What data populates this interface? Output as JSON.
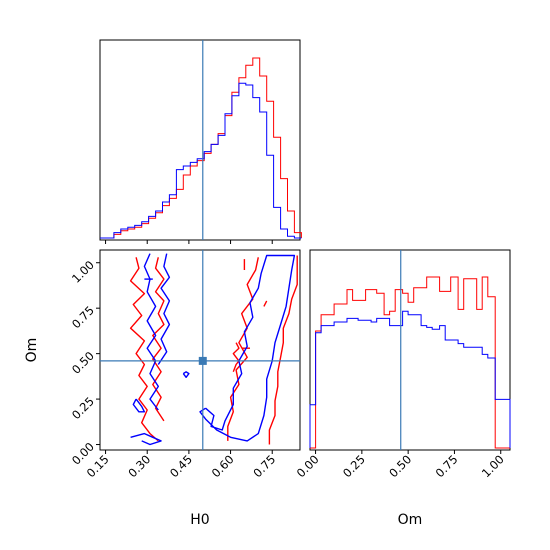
{
  "colors": {
    "red": "#ff0000",
    "blue": "#0000ff",
    "truth": "#3a7ab5",
    "frame": "#000000"
  },
  "chart_data": [
    {
      "type": "histogram",
      "panel": "H0 marginal",
      "x_range": [
        0.13,
        0.85
      ],
      "bin_edges": [
        0.13,
        0.155,
        0.18,
        0.205,
        0.23,
        0.255,
        0.28,
        0.305,
        0.33,
        0.355,
        0.38,
        0.405,
        0.43,
        0.455,
        0.48,
        0.505,
        0.53,
        0.555,
        0.58,
        0.605,
        0.63,
        0.655,
        0.68,
        0.705,
        0.73,
        0.755,
        0.78,
        0.805,
        0.83,
        0.855
      ],
      "series": [
        {
          "color": "red",
          "counts": [
            0,
            0,
            0.02,
            0.04,
            0.05,
            0.06,
            0.08,
            0.11,
            0.14,
            0.18,
            0.22,
            0.27,
            0.35,
            0.4,
            0.43,
            0.47,
            0.52,
            0.58,
            0.68,
            0.81,
            0.89,
            0.96,
            1.0,
            0.9,
            0.76,
            0.56,
            0.33,
            0.15,
            0.03
          ]
        },
        {
          "color": "blue",
          "counts": [
            0,
            0,
            0.03,
            0.05,
            0.06,
            0.07,
            0.09,
            0.12,
            0.15,
            0.2,
            0.24,
            0.38,
            0.4,
            0.42,
            0.44,
            0.48,
            0.52,
            0.57,
            0.69,
            0.79,
            0.86,
            0.85,
            0.78,
            0.7,
            0.46,
            0.17,
            0.05,
            0.01,
            0
          ]
        }
      ],
      "truth_x": 0.5
    },
    {
      "type": "contour",
      "panel": "H0 vs Om",
      "x_range": [
        0.13,
        0.85
      ],
      "y_range": [
        -0.03,
        1.07
      ],
      "x_ticks": [
        "0.15",
        "0.30",
        "0.45",
        "0.60",
        "0.75"
      ],
      "y_ticks": [
        "0.00",
        "0.25",
        "0.50",
        "0.75",
        "1.00"
      ],
      "xlabel": "H0",
      "ylabel": "Om",
      "truth_point": [
        0.5,
        0.46
      ],
      "red_contours": [
        [
          [
            0.26,
            1.03
          ],
          [
            0.27,
            0.97
          ],
          [
            0.24,
            0.9
          ],
          [
            0.29,
            0.83
          ],
          [
            0.25,
            0.77
          ],
          [
            0.28,
            0.71
          ],
          [
            0.24,
            0.64
          ],
          [
            0.29,
            0.57
          ],
          [
            0.26,
            0.5
          ],
          [
            0.29,
            0.44
          ],
          [
            0.27,
            0.38
          ],
          [
            0.3,
            0.32
          ],
          [
            0.27,
            0.25
          ],
          [
            0.3,
            0.19
          ],
          [
            0.28,
            0.12
          ],
          [
            0.31,
            0.06
          ],
          [
            0.34,
            0.02
          ]
        ],
        [
          [
            0.34,
            1.03
          ],
          [
            0.33,
            0.97
          ],
          [
            0.36,
            0.91
          ],
          [
            0.33,
            0.84
          ],
          [
            0.36,
            0.79
          ],
          [
            0.34,
            0.72
          ],
          [
            0.36,
            0.66
          ],
          [
            0.32,
            0.6
          ],
          [
            0.35,
            0.53
          ],
          [
            0.32,
            0.47
          ],
          [
            0.35,
            0.4
          ],
          [
            0.32,
            0.33
          ],
          [
            0.35,
            0.26
          ],
          [
            0.33,
            0.2
          ],
          [
            0.36,
            0.13
          ]
        ],
        [
          [
            0.59,
            0.02
          ],
          [
            0.59,
            0.1
          ],
          [
            0.61,
            0.18
          ],
          [
            0.6,
            0.26
          ],
          [
            0.63,
            0.33
          ],
          [
            0.62,
            0.41
          ],
          [
            0.66,
            0.48
          ],
          [
            0.63,
            0.56
          ],
          [
            0.66,
            0.64
          ],
          [
            0.64,
            0.72
          ],
          [
            0.68,
            0.8
          ],
          [
            0.66,
            0.88
          ],
          [
            0.69,
            0.96
          ],
          [
            0.7,
            1.03
          ]
        ],
        [
          [
            0.74,
            0.0
          ],
          [
            0.74,
            0.08
          ],
          [
            0.76,
            0.16
          ],
          [
            0.76,
            0.24
          ],
          [
            0.77,
            0.32
          ],
          [
            0.77,
            0.4
          ],
          [
            0.78,
            0.48
          ],
          [
            0.79,
            0.56
          ],
          [
            0.79,
            0.64
          ],
          [
            0.81,
            0.72
          ],
          [
            0.82,
            0.8
          ],
          [
            0.84,
            0.88
          ],
          [
            0.84,
            0.96
          ],
          [
            0.84,
            1.04
          ]
        ],
        [
          [
            0.61,
            0.4
          ],
          [
            0.62,
            0.44
          ],
          [
            0.63,
            0.46
          ],
          [
            0.61,
            0.5
          ],
          [
            0.63,
            0.53
          ],
          [
            0.62,
            0.56
          ]
        ],
        [
          [
            0.64,
            0.53
          ],
          [
            0.67,
            0.53
          ]
        ],
        [
          [
            0.72,
            0.76
          ],
          [
            0.73,
            0.79
          ]
        ],
        [
          [
            0.65,
            1.02
          ],
          [
            0.65,
            0.96
          ]
        ]
      ],
      "blue_contours": [
        [
          [
            0.31,
            1.05
          ],
          [
            0.29,
            0.98
          ],
          [
            0.31,
            0.91
          ],
          [
            0.3,
            0.84
          ],
          [
            0.33,
            0.76
          ],
          [
            0.3,
            0.68
          ],
          [
            0.33,
            0.6
          ],
          [
            0.3,
            0.53
          ],
          [
            0.33,
            0.46
          ],
          [
            0.31,
            0.39
          ],
          [
            0.34,
            0.32
          ],
          [
            0.31,
            0.25
          ],
          [
            0.34,
            0.19
          ]
        ],
        [
          [
            0.37,
            1.05
          ],
          [
            0.36,
            0.98
          ],
          [
            0.38,
            0.92
          ],
          [
            0.35,
            0.86
          ],
          [
            0.38,
            0.79
          ],
          [
            0.36,
            0.72
          ],
          [
            0.38,
            0.66
          ],
          [
            0.35,
            0.58
          ],
          [
            0.37,
            0.51
          ],
          [
            0.34,
            0.44
          ]
        ],
        [
          [
            0.26,
            0.25
          ],
          [
            0.28,
            0.21
          ],
          [
            0.29,
            0.18
          ],
          [
            0.27,
            0.18
          ],
          [
            0.25,
            0.22
          ],
          [
            0.26,
            0.25
          ]
        ],
        [
          [
            0.24,
            0.04
          ],
          [
            0.29,
            0.06
          ],
          [
            0.32,
            0.04
          ],
          [
            0.35,
            0.02
          ],
          [
            0.31,
            0.0
          ],
          [
            0.28,
            0.02
          ]
        ],
        [
          [
            0.43,
            0.39
          ],
          [
            0.44,
            0.37
          ],
          [
            0.45,
            0.39
          ],
          [
            0.44,
            0.4
          ],
          [
            0.43,
            0.39
          ]
        ],
        [
          [
            0.51,
            0.2
          ],
          [
            0.54,
            0.16
          ],
          [
            0.53,
            0.1
          ],
          [
            0.57,
            0.08
          ],
          [
            0.58,
            0.13
          ],
          [
            0.61,
            0.22
          ],
          [
            0.61,
            0.31
          ],
          [
            0.64,
            0.39
          ],
          [
            0.63,
            0.46
          ],
          [
            0.66,
            0.54
          ],
          [
            0.65,
            0.62
          ],
          [
            0.68,
            0.7
          ],
          [
            0.67,
            0.78
          ],
          [
            0.7,
            0.86
          ],
          [
            0.71,
            0.94
          ],
          [
            0.73,
            1.04
          ],
          [
            0.83,
            1.04
          ],
          [
            0.82,
            0.96
          ],
          [
            0.81,
            0.86
          ],
          [
            0.8,
            0.76
          ],
          [
            0.78,
            0.66
          ],
          [
            0.76,
            0.56
          ],
          [
            0.75,
            0.46
          ],
          [
            0.73,
            0.36
          ],
          [
            0.73,
            0.26
          ],
          [
            0.72,
            0.16
          ],
          [
            0.7,
            0.06
          ],
          [
            0.66,
            0.02
          ],
          [
            0.6,
            0.04
          ],
          [
            0.55,
            0.08
          ],
          [
            0.51,
            0.14
          ],
          [
            0.49,
            0.18
          ],
          [
            0.51,
            0.2
          ]
        ],
        [
          [
            0.29,
            0.91
          ],
          [
            0.32,
            0.91
          ]
        ]
      ]
    },
    {
      "type": "histogram",
      "panel": "Om marginal",
      "x_range": [
        -0.03,
        1.05
      ],
      "x_ticks": [
        "0.00",
        "0.25",
        "0.50",
        "0.75",
        "1.00"
      ],
      "xlabel": "Om",
      "bin_edges": [
        -0.03,
        0.0,
        0.03,
        0.07,
        0.1,
        0.13,
        0.17,
        0.2,
        0.23,
        0.27,
        0.3,
        0.33,
        0.37,
        0.4,
        0.43,
        0.47,
        0.5,
        0.53,
        0.57,
        0.6,
        0.63,
        0.67,
        0.7,
        0.73,
        0.77,
        0.8,
        0.83,
        0.87,
        0.9,
        0.93,
        0.97,
        1.0,
        1.05
      ],
      "series": [
        {
          "color": "red",
          "counts": [
            0,
            0.65,
            0.74,
            0.74,
            0.8,
            0.8,
            0.88,
            0.82,
            0.82,
            0.88,
            0.88,
            0.86,
            0.74,
            0.76,
            0.88,
            0.86,
            0.81,
            0.89,
            0.89,
            0.95,
            0.95,
            0.87,
            0.87,
            0.95,
            0.77,
            0.94,
            0.94,
            0.77,
            0.95,
            0.84,
            0,
            0
          ]
        },
        {
          "color": "blue",
          "counts": [
            0.24,
            0.64,
            0.68,
            0.68,
            0.7,
            0.7,
            0.72,
            0.72,
            0.71,
            0.71,
            0.7,
            0.72,
            0.72,
            0.68,
            0.68,
            0.76,
            0.74,
            0.74,
            0.68,
            0.67,
            0.66,
            0.68,
            0.6,
            0.6,
            0.58,
            0.56,
            0.56,
            0.56,
            0.52,
            0.5,
            0.27,
            0.27
          ]
        }
      ],
      "truth_x": 0.46
    }
  ]
}
